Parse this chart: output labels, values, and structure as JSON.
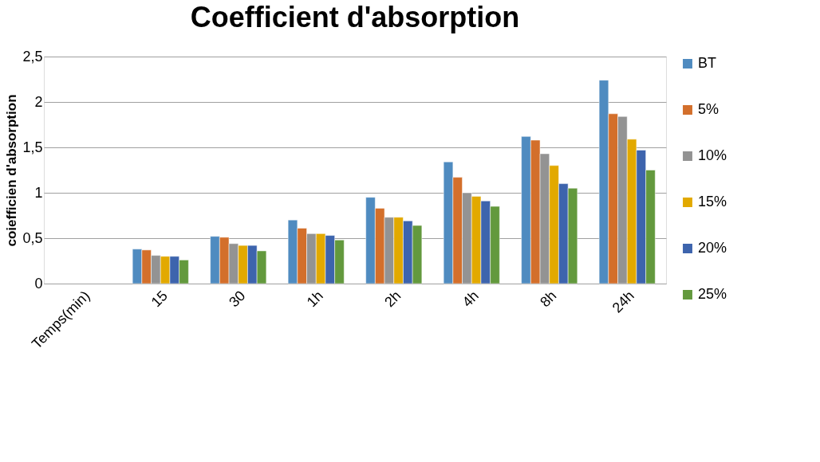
{
  "chart_data": {
    "type": "bar",
    "title": "Coefficient  d'absorption",
    "ylabel": "coiefficien d'absorption",
    "categories": [
      "Temps(min)",
      "15",
      "30",
      "1h",
      "2h",
      "4h",
      "8h",
      "24h"
    ],
    "series": [
      {
        "name": "BT",
        "color": "#4f8bc0",
        "values": [
          null,
          0.38,
          0.52,
          0.7,
          0.95,
          1.34,
          1.62,
          2.24
        ]
      },
      {
        "name": "5%",
        "color": "#d36f2b",
        "values": [
          null,
          0.37,
          0.51,
          0.61,
          0.83,
          1.17,
          1.58,
          1.87
        ]
      },
      {
        "name": "10%",
        "color": "#939393",
        "values": [
          null,
          0.31,
          0.44,
          0.55,
          0.73,
          1.0,
          1.43,
          1.84
        ]
      },
      {
        "name": "15%",
        "color": "#e2a900",
        "values": [
          null,
          0.3,
          0.42,
          0.55,
          0.73,
          0.96,
          1.3,
          1.59
        ]
      },
      {
        "name": "20%",
        "color": "#3d64ad",
        "values": [
          null,
          0.3,
          0.42,
          0.53,
          0.69,
          0.91,
          1.1,
          1.47
        ]
      },
      {
        "name": "25%",
        "color": "#63993d",
        "values": [
          null,
          0.26,
          0.36,
          0.48,
          0.64,
          0.85,
          1.05,
          1.25
        ]
      }
    ],
    "ylim": [
      0,
      2.5
    ],
    "yticks": [
      {
        "value": 0,
        "label": "0"
      },
      {
        "value": 0.5,
        "label": "0,5"
      },
      {
        "value": 1,
        "label": "1"
      },
      {
        "value": 1.5,
        "label": "1,5"
      },
      {
        "value": 2,
        "label": "2"
      },
      {
        "value": 2.5,
        "label": "2,5"
      }
    ],
    "grid": "y",
    "legend": "right"
  }
}
